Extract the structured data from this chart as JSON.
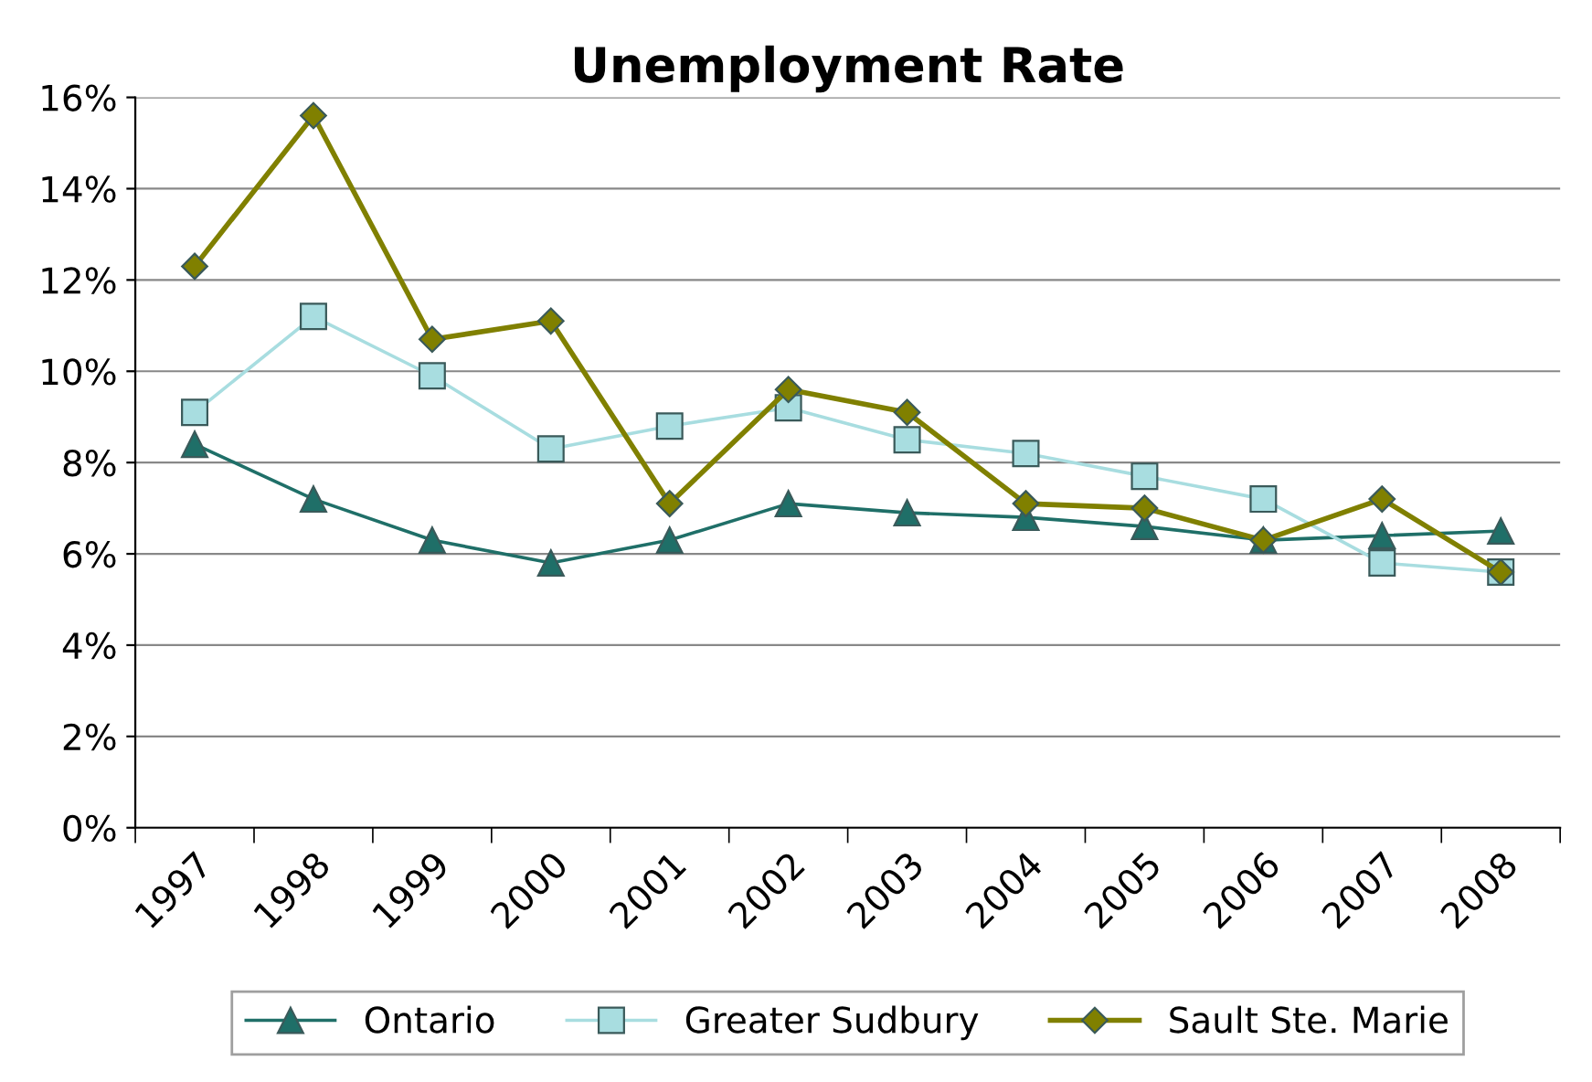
{
  "chart_data": {
    "type": "line",
    "title": "Unemployment Rate",
    "categories": [
      "1997",
      "1998",
      "1999",
      "2000",
      "2001",
      "2002",
      "2003",
      "2004",
      "2005",
      "2006",
      "2007",
      "2008"
    ],
    "ylim": [
      0,
      16
    ],
    "yticks": [
      {
        "value": 0,
        "label": "0%"
      },
      {
        "value": 2,
        "label": "2%"
      },
      {
        "value": 4,
        "label": "4%"
      },
      {
        "value": 6,
        "label": "6%"
      },
      {
        "value": 8,
        "label": "8%"
      },
      {
        "value": 10,
        "label": "10%"
      },
      {
        "value": 12,
        "label": "12%"
      },
      {
        "value": 14,
        "label": "14%"
      },
      {
        "value": 16,
        "label": "16%"
      }
    ],
    "grid": "y",
    "legend": "bottom",
    "line_style": "solid",
    "series": [
      {
        "name": "Ontario",
        "color": "#1f6f68",
        "marker": "triangle",
        "values": [
          8.4,
          7.2,
          6.3,
          5.8,
          6.3,
          7.1,
          6.9,
          6.8,
          6.6,
          6.3,
          6.4,
          6.5
        ]
      },
      {
        "name": "Greater Sudbury",
        "color": "#a8dde0",
        "marker": "square",
        "values": [
          9.1,
          11.2,
          9.9,
          8.3,
          8.8,
          9.2,
          8.5,
          8.2,
          7.7,
          7.2,
          5.8,
          5.6
        ]
      },
      {
        "name": "Sault Ste. Marie",
        "color": "#808000",
        "marker": "diamond",
        "values": [
          12.3,
          15.6,
          10.7,
          11.1,
          7.1,
          9.6,
          9.1,
          7.1,
          7.0,
          6.3,
          7.2,
          5.6
        ]
      }
    ]
  }
}
